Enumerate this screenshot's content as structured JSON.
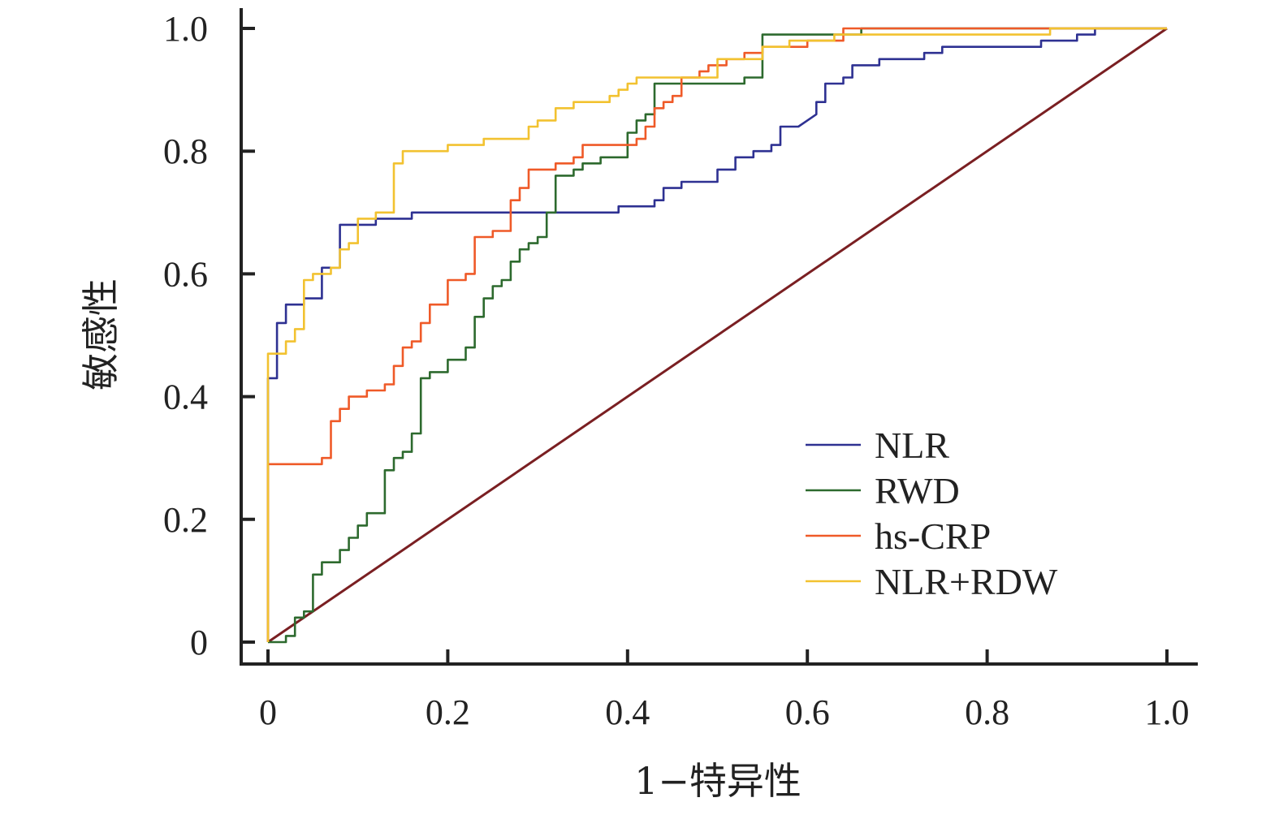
{
  "chart_data": {
    "type": "line",
    "title": "",
    "xlabel": "1−特异性",
    "ylabel": "敏感性",
    "xlim": [
      0,
      1.0
    ],
    "ylim": [
      0,
      1.0
    ],
    "x_ticks": [
      "0",
      "0.2",
      "0.4",
      "0.6",
      "0.8",
      "1.0"
    ],
    "y_ticks": [
      "0",
      "0.2",
      "0.4",
      "0.6",
      "0.8",
      "1.0"
    ],
    "x_tick_values": [
      0,
      0.2,
      0.4,
      0.6,
      0.8,
      1.0
    ],
    "y_tick_values": [
      0,
      0.2,
      0.4,
      0.6,
      0.8,
      1.0
    ],
    "grid": false,
    "legend_position": "bottom-right",
    "reference_line": {
      "x": [
        0,
        1.0
      ],
      "y": [
        0,
        1.0
      ],
      "color": "#7a1f22"
    },
    "series": [
      {
        "name": "NLR",
        "color": "#2e3192",
        "x": [
          0,
          0,
          0.01,
          0.01,
          0.02,
          0.02,
          0.04,
          0.04,
          0.06,
          0.06,
          0.08,
          0.08,
          0.12,
          0.12,
          0.16,
          0.16,
          0.39,
          0.39,
          0.43,
          0.43,
          0.44,
          0.44,
          0.46,
          0.46,
          0.5,
          0.5,
          0.52,
          0.52,
          0.54,
          0.54,
          0.56,
          0.56,
          0.57,
          0.57,
          0.59,
          0.6,
          0.61,
          0.61,
          0.62,
          0.62,
          0.64,
          0.64,
          0.65,
          0.65,
          0.68,
          0.68,
          0.7,
          0.7,
          0.73,
          0.73,
          0.75,
          0.75,
          0.86,
          0.86,
          0.9,
          0.9,
          0.92,
          0.92,
          1.0
        ],
        "y": [
          0,
          0.43,
          0.43,
          0.52,
          0.52,
          0.55,
          0.55,
          0.56,
          0.56,
          0.61,
          0.61,
          0.68,
          0.68,
          0.69,
          0.69,
          0.7,
          0.7,
          0.71,
          0.71,
          0.72,
          0.72,
          0.74,
          0.74,
          0.75,
          0.75,
          0.77,
          0.77,
          0.79,
          0.79,
          0.8,
          0.8,
          0.81,
          0.81,
          0.84,
          0.84,
          0.85,
          0.86,
          0.88,
          0.88,
          0.91,
          0.91,
          0.92,
          0.92,
          0.94,
          0.94,
          0.95,
          0.95,
          0.95,
          0.95,
          0.96,
          0.96,
          0.97,
          0.97,
          0.98,
          0.98,
          0.99,
          0.99,
          1.0,
          1.0
        ]
      },
      {
        "name": "RWD",
        "color": "#2d6a2e",
        "x": [
          0,
          0.02,
          0.02,
          0.03,
          0.03,
          0.04,
          0.04,
          0.05,
          0.05,
          0.06,
          0.06,
          0.08,
          0.08,
          0.09,
          0.09,
          0.1,
          0.1,
          0.11,
          0.11,
          0.13,
          0.13,
          0.14,
          0.14,
          0.15,
          0.15,
          0.16,
          0.16,
          0.17,
          0.17,
          0.18,
          0.18,
          0.2,
          0.2,
          0.22,
          0.22,
          0.23,
          0.23,
          0.24,
          0.24,
          0.25,
          0.25,
          0.26,
          0.26,
          0.27,
          0.27,
          0.28,
          0.28,
          0.29,
          0.29,
          0.3,
          0.3,
          0.31,
          0.31,
          0.32,
          0.32,
          0.34,
          0.34,
          0.35,
          0.35,
          0.37,
          0.37,
          0.4,
          0.4,
          0.41,
          0.41,
          0.42,
          0.42,
          0.43,
          0.43,
          0.45,
          0.45,
          0.48,
          0.48,
          0.53,
          0.53,
          0.55,
          0.55,
          0.57,
          0.57,
          0.6,
          0.6,
          0.66,
          0.66,
          1.0
        ],
        "y": [
          0,
          0,
          0.01,
          0.01,
          0.04,
          0.04,
          0.05,
          0.05,
          0.11,
          0.11,
          0.13,
          0.13,
          0.15,
          0.15,
          0.17,
          0.17,
          0.19,
          0.19,
          0.21,
          0.21,
          0.28,
          0.28,
          0.3,
          0.3,
          0.31,
          0.31,
          0.34,
          0.34,
          0.43,
          0.43,
          0.44,
          0.44,
          0.46,
          0.46,
          0.48,
          0.48,
          0.53,
          0.53,
          0.56,
          0.56,
          0.58,
          0.58,
          0.59,
          0.59,
          0.62,
          0.62,
          0.64,
          0.64,
          0.65,
          0.65,
          0.66,
          0.66,
          0.7,
          0.7,
          0.76,
          0.76,
          0.77,
          0.77,
          0.78,
          0.78,
          0.79,
          0.79,
          0.83,
          0.83,
          0.85,
          0.85,
          0.86,
          0.86,
          0.91,
          0.91,
          0.91,
          0.91,
          0.91,
          0.91,
          0.92,
          0.92,
          0.99,
          0.99,
          0.99,
          0.99,
          0.99,
          0.99,
          1.0,
          1.0
        ]
      },
      {
        "name": "hs-CRP",
        "color": "#ef5a28",
        "x": [
          0,
          0,
          0.05,
          0.05,
          0.06,
          0.06,
          0.07,
          0.07,
          0.08,
          0.08,
          0.09,
          0.09,
          0.11,
          0.11,
          0.13,
          0.13,
          0.14,
          0.14,
          0.15,
          0.15,
          0.16,
          0.16,
          0.17,
          0.17,
          0.18,
          0.18,
          0.2,
          0.2,
          0.22,
          0.22,
          0.23,
          0.23,
          0.25,
          0.25,
          0.27,
          0.27,
          0.28,
          0.28,
          0.29,
          0.29,
          0.3,
          0.3,
          0.32,
          0.32,
          0.34,
          0.34,
          0.35,
          0.35,
          0.38,
          0.38,
          0.41,
          0.41,
          0.42,
          0.42,
          0.43,
          0.43,
          0.44,
          0.44,
          0.45,
          0.45,
          0.46,
          0.46,
          0.48,
          0.48,
          0.49,
          0.49,
          0.51,
          0.51,
          0.53,
          0.53,
          0.55,
          0.55,
          0.58,
          0.58,
          0.6,
          0.6,
          0.64,
          0.64,
          0.68,
          0.68,
          0.72,
          0.72,
          1.0
        ],
        "y": [
          0,
          0.29,
          0.29,
          0.29,
          0.29,
          0.3,
          0.3,
          0.36,
          0.36,
          0.38,
          0.38,
          0.4,
          0.4,
          0.41,
          0.41,
          0.42,
          0.42,
          0.45,
          0.45,
          0.48,
          0.48,
          0.49,
          0.49,
          0.52,
          0.52,
          0.55,
          0.55,
          0.59,
          0.59,
          0.6,
          0.6,
          0.66,
          0.66,
          0.67,
          0.67,
          0.72,
          0.72,
          0.74,
          0.74,
          0.77,
          0.77,
          0.77,
          0.77,
          0.78,
          0.78,
          0.79,
          0.79,
          0.81,
          0.81,
          0.81,
          0.81,
          0.82,
          0.82,
          0.84,
          0.84,
          0.87,
          0.87,
          0.88,
          0.88,
          0.89,
          0.89,
          0.92,
          0.92,
          0.93,
          0.93,
          0.94,
          0.94,
          0.95,
          0.95,
          0.96,
          0.96,
          0.97,
          0.97,
          0.97,
          0.97,
          0.98,
          0.98,
          1.0,
          1.0,
          1.0,
          1.0,
          1.0,
          1.0
        ]
      },
      {
        "name": "NLR+RDW",
        "color": "#f2c230",
        "x": [
          0,
          0,
          0.02,
          0.02,
          0.03,
          0.03,
          0.04,
          0.04,
          0.05,
          0.05,
          0.07,
          0.07,
          0.08,
          0.08,
          0.09,
          0.09,
          0.1,
          0.1,
          0.12,
          0.12,
          0.14,
          0.14,
          0.15,
          0.15,
          0.2,
          0.2,
          0.24,
          0.24,
          0.29,
          0.29,
          0.3,
          0.3,
          0.32,
          0.32,
          0.34,
          0.34,
          0.38,
          0.38,
          0.39,
          0.39,
          0.4,
          0.4,
          0.41,
          0.41,
          0.5,
          0.5,
          0.55,
          0.55,
          0.58,
          0.58,
          0.63,
          0.63,
          0.87,
          0.87,
          1.0
        ],
        "y": [
          0,
          0.47,
          0.47,
          0.49,
          0.49,
          0.51,
          0.51,
          0.59,
          0.59,
          0.6,
          0.6,
          0.61,
          0.61,
          0.64,
          0.64,
          0.65,
          0.65,
          0.69,
          0.69,
          0.7,
          0.7,
          0.78,
          0.78,
          0.8,
          0.8,
          0.81,
          0.81,
          0.82,
          0.82,
          0.84,
          0.84,
          0.85,
          0.85,
          0.87,
          0.87,
          0.88,
          0.88,
          0.89,
          0.89,
          0.9,
          0.9,
          0.91,
          0.91,
          0.92,
          0.92,
          0.95,
          0.95,
          0.97,
          0.97,
          0.98,
          0.98,
          0.99,
          0.99,
          1.0,
          1.0
        ]
      }
    ]
  }
}
